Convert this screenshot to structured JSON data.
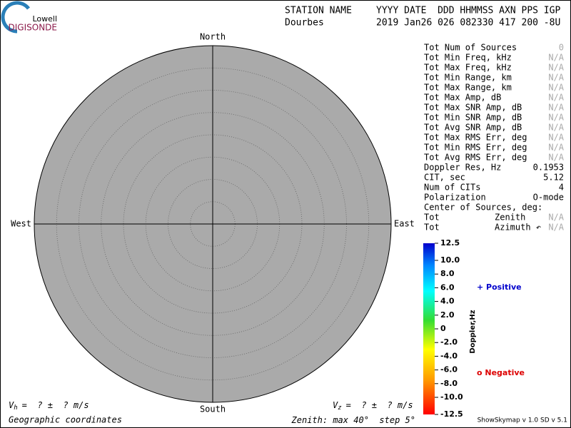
{
  "logo": {
    "line1": "Lowell",
    "line2": "DIGISONDE"
  },
  "header": {
    "row1": [
      "STATION NAME",
      "YYYY DATE  DDD HHMMSS AXN PPS IGP"
    ],
    "row2": [
      "Dourbes",
      "2019 Jan26 026 082330 417 200 -8U"
    ]
  },
  "stats": [
    {
      "cells": [
        "Tot Num of Sources",
        "0"
      ],
      "color": "#aaaaaa"
    },
    {
      "cells": [
        "Tot Min Freq, kHz",
        "N/A"
      ],
      "color": "#aaaaaa"
    },
    {
      "cells": [
        "Tot Max Freq, kHz",
        "N/A"
      ],
      "color": "#aaaaaa"
    },
    {
      "cells": [
        "Tot Min Range, km",
        "N/A"
      ],
      "color": "#aaaaaa"
    },
    {
      "cells": [
        "Tot Max Range, km",
        "N/A"
      ],
      "color": "#aaaaaa"
    },
    {
      "cells": [
        "Tot Max Amp, dB",
        "N/A"
      ],
      "color": "#aaaaaa"
    },
    {
      "cells": [
        "Tot Max SNR Amp, dB",
        "N/A"
      ],
      "color": "#aaaaaa"
    },
    {
      "cells": [
        "Tot Min SNR Amp, dB",
        "N/A"
      ],
      "color": "#aaaaaa"
    },
    {
      "cells": [
        "Tot Avg SNR Amp, dB",
        "N/A"
      ],
      "color": "#aaaaaa"
    },
    {
      "cells": [
        "Tot Max RMS Err, deg",
        "N/A"
      ],
      "color": "#aaaaaa"
    },
    {
      "cells": [
        "Tot Min RMS Err, deg",
        "N/A"
      ],
      "color": "#aaaaaa"
    },
    {
      "cells": [
        "Tot Avg RMS Err, deg",
        "N/A"
      ],
      "color": "#aaaaaa"
    },
    {
      "cells": [
        "Doppler Res, Hz",
        "0.1953"
      ],
      "color": "#000000"
    },
    {
      "cells": [
        "CIT, sec",
        "5.12"
      ],
      "color": "#000000"
    },
    {
      "cells": [
        "Num of CITs",
        "4"
      ],
      "color": "#000000"
    },
    {
      "cells": [
        "Polarization",
        "O-mode"
      ],
      "color": "#000000"
    },
    {
      "cells": [
        "Center of Sources, deg:"
      ],
      "color": "#000000"
    },
    {
      "cells": [
        "Tot",
        "Zenith",
        "N/A"
      ],
      "color": "#aaaaaa"
    },
    {
      "cells": [
        "Tot",
        "Azimuth ↶",
        "N/A"
      ],
      "color": "#aaaaaa"
    }
  ],
  "compass": {
    "north": "North",
    "south": "South",
    "east": "East",
    "west": "West"
  },
  "zenith": {
    "label": "Zenith: max",
    "max": 40,
    "unit": "°",
    "step_label": "step",
    "step": 5
  },
  "colorbar": {
    "label": "Doppler,Hz",
    "range": [
      -12.5,
      12.5
    ],
    "ticks": [
      {
        "value": 12.5,
        "label": "12.5"
      },
      {
        "value": 10,
        "label": "10.0"
      },
      {
        "value": 8,
        "label": "8.0"
      },
      {
        "value": 6,
        "label": "6.0"
      },
      {
        "value": 4,
        "label": "4.0"
      },
      {
        "value": 2,
        "label": "2.0"
      },
      0,
      {
        "value": -2,
        "label": "-2.0"
      },
      {
        "value": -4,
        "label": "-4.0"
      },
      {
        "value": -6,
        "label": "-6.0"
      },
      {
        "value": -8,
        "label": "-8.0"
      },
      {
        "value": -10,
        "label": "-10.0"
      },
      {
        "value": -12.5,
        "label": "-12.5"
      }
    ]
  },
  "legend": {
    "positive": "+ Positive",
    "positive_color": "#0000cc",
    "negative": "o Negative",
    "negative_color": "#dd0000"
  },
  "footer": {
    "vh": {
      "symbol": "V",
      "sub": "h",
      "text": "=  ? ±  ? m/s"
    },
    "vz": {
      "symbol": "V",
      "sub": "z",
      "text": "=  ? ±  ? m/s"
    },
    "coords": "Geographic coordinates",
    "version": "ShowSkymap v 1.0  SD v 5.1"
  }
}
